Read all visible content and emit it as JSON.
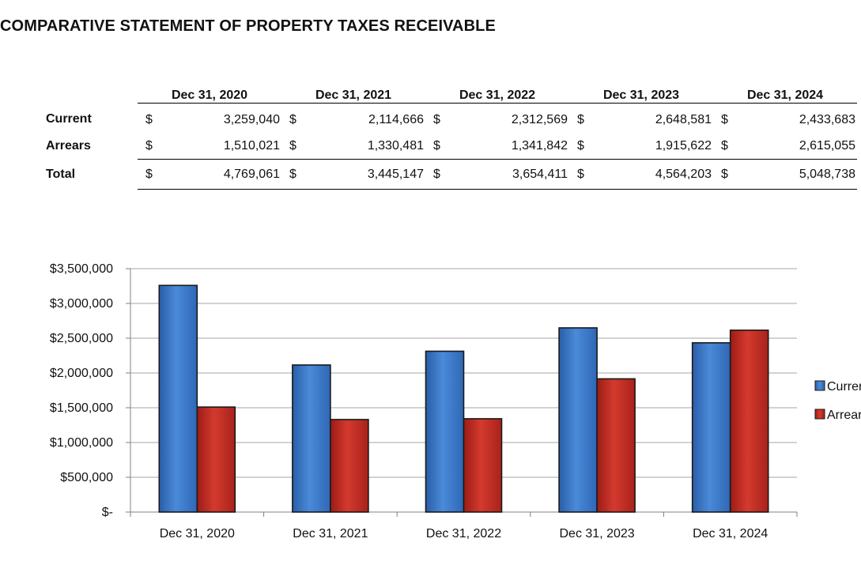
{
  "title": "COMPARATIVE STATEMENT OF PROPERTY TAXES RECEIVABLE",
  "table": {
    "columns": [
      "Dec 31, 2020",
      "Dec 31, 2021",
      "Dec 31, 2022",
      "Dec 31, 2023",
      "Dec 31, 2024"
    ],
    "currency": "$",
    "rows": [
      {
        "label": "Current",
        "values": [
          "3,259,040",
          "2,114,666",
          "2,312,569",
          "2,648,581",
          "2,433,683"
        ]
      },
      {
        "label": "Arrears",
        "values": [
          "1,510,021",
          "1,330,481",
          "1,341,842",
          "1,915,622",
          "2,615,055"
        ]
      },
      {
        "label": "Total",
        "values": [
          "4,769,061",
          "3,445,147",
          "3,654,411",
          "4,564,203",
          "5,048,738"
        ]
      }
    ]
  },
  "chart_data": {
    "type": "bar",
    "title": "",
    "xlabel": "",
    "ylabel": "",
    "categories": [
      "Dec 31, 2020",
      "Dec 31, 2021",
      "Dec 31, 2022",
      "Dec 31, 2023",
      "Dec 31, 2024"
    ],
    "series": [
      {
        "name": "Current",
        "color": "#3a78c9",
        "values": [
          3259040,
          2114666,
          2312569,
          2648581,
          2433683
        ]
      },
      {
        "name": "Arrears",
        "color": "#c0281f",
        "values": [
          1510021,
          1330481,
          1341842,
          1915622,
          2615055
        ]
      }
    ],
    "ylim": [
      0,
      3500000
    ],
    "yticks": [
      0,
      500000,
      1000000,
      1500000,
      2000000,
      2500000,
      3000000,
      3500000
    ],
    "ytick_labels": [
      "$-",
      "$500,000",
      "$1,000,000",
      "$1,500,000",
      "$2,000,000",
      "$2,500,000",
      "$3,000,000",
      "$3,500,000"
    ],
    "grid": true,
    "legend": "right"
  }
}
